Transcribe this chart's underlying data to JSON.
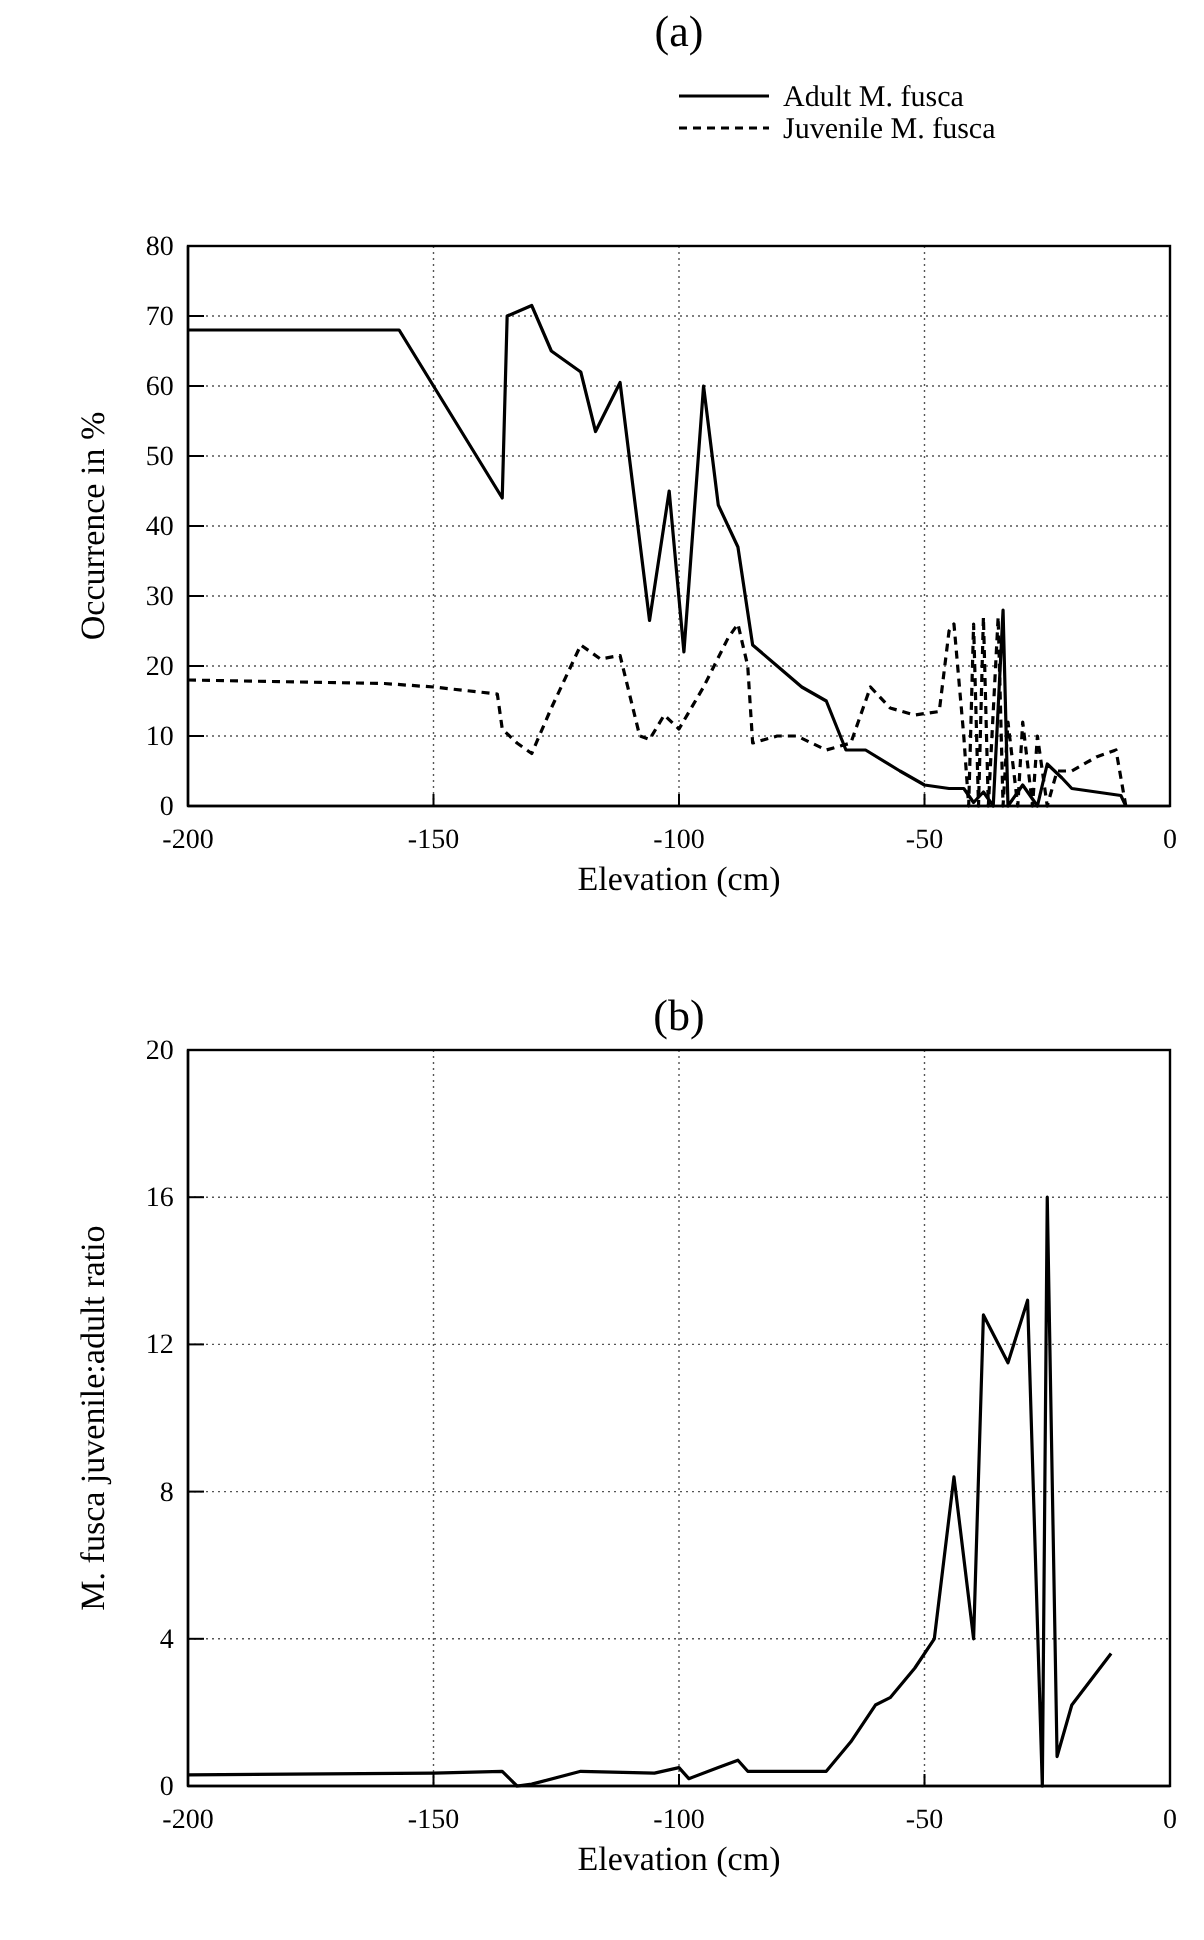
{
  "chart_data": [
    {
      "type": "line",
      "title": "(a)",
      "xlabel": "Elevation (cm)",
      "ylabel": "Occurrence in %",
      "xlim": [
        -200,
        0
      ],
      "xticks": [
        -200,
        -150,
        -100,
        -50,
        0
      ],
      "ylim": [
        0,
        80
      ],
      "yticks": [
        0,
        10,
        20,
        30,
        40,
        50,
        60,
        70,
        80
      ],
      "grid": true,
      "legend": "top",
      "series": [
        {
          "name": "Adult M. fusca",
          "color": "#000000",
          "line_style": "solid",
          "x": [
            -200,
            -157,
            -136,
            -135,
            -130,
            -126,
            -120,
            -117,
            -112,
            -106,
            -102,
            -99,
            -95,
            -92,
            -88,
            -85,
            -80,
            -75,
            -70,
            -66,
            -62,
            -55,
            -50,
            -45,
            -42,
            -40,
            -38,
            -36,
            -34,
            -33,
            -30,
            -27,
            -25,
            -22,
            -20,
            -10,
            -9
          ],
          "values": [
            68,
            68,
            44,
            70,
            71.5,
            65,
            62,
            53.5,
            60.5,
            26.5,
            45,
            22,
            60,
            43,
            37,
            23,
            20,
            17,
            15,
            8,
            8,
            5,
            3,
            2.5,
            2.5,
            0.5,
            2,
            0,
            28,
            0,
            3,
            0,
            6,
            4,
            2.5,
            1.5,
            0
          ]
        },
        {
          "name": "Juvenile M. fusca",
          "color": "#000000",
          "line_style": "dashed",
          "x": [
            -200,
            -160,
            -150,
            -137,
            -136,
            -133,
            -130,
            -126,
            -120,
            -116,
            -112,
            -108,
            -106,
            -103,
            -100,
            -95,
            -90,
            -88,
            -86,
            -85,
            -80,
            -76,
            -70,
            -65,
            -61,
            -57,
            -52,
            -47,
            -45,
            -44,
            -42,
            -41,
            -40,
            -39,
            -38,
            -37,
            -35,
            -34,
            -33,
            -31,
            -30,
            -28,
            -27,
            -25,
            -23,
            -20,
            -15,
            -11,
            -9
          ],
          "values": [
            18,
            17.5,
            17,
            16,
            11,
            9,
            7.5,
            14,
            23,
            21,
            21.5,
            10,
            9.5,
            13,
            11,
            17,
            24,
            26,
            20,
            9,
            10,
            10,
            8,
            9,
            17,
            14,
            13,
            13.5,
            25,
            26,
            10,
            0,
            26,
            0,
            27,
            0,
            27,
            0,
            12,
            0,
            12,
            0,
            10,
            0,
            5,
            5,
            7,
            8,
            0
          ]
        }
      ]
    },
    {
      "type": "line",
      "title": "(b)",
      "xlabel": "Elevation (cm)",
      "ylabel": "M. fusca juvenile:adult ratio",
      "xlim": [
        -200,
        0
      ],
      "xticks": [
        -200,
        -150,
        -100,
        -50,
        0
      ],
      "ylim": [
        0,
        20
      ],
      "yticks": [
        0,
        4,
        8,
        12,
        16,
        20
      ],
      "grid": true,
      "series": [
        {
          "color": "#000000",
          "line_style": "solid",
          "x": [
            -200,
            -150,
            -136,
            -133,
            -130,
            -120,
            -105,
            -100,
            -98,
            -92,
            -88,
            -86,
            -70,
            -65,
            -60,
            -57,
            -52,
            -48,
            -44,
            -40,
            -38,
            -33,
            -29,
            -26,
            -25,
            -23,
            -20,
            -12
          ],
          "values": [
            0.3,
            0.35,
            0.4,
            0,
            0.05,
            0.4,
            0.35,
            0.5,
            0.2,
            0.5,
            0.7,
            0.4,
            0.4,
            1.2,
            2.2,
            2.4,
            3.2,
            4,
            8.4,
            4,
            12.8,
            11.5,
            13.2,
            0,
            16,
            0.8,
            2.2,
            3.6
          ]
        }
      ]
    }
  ]
}
